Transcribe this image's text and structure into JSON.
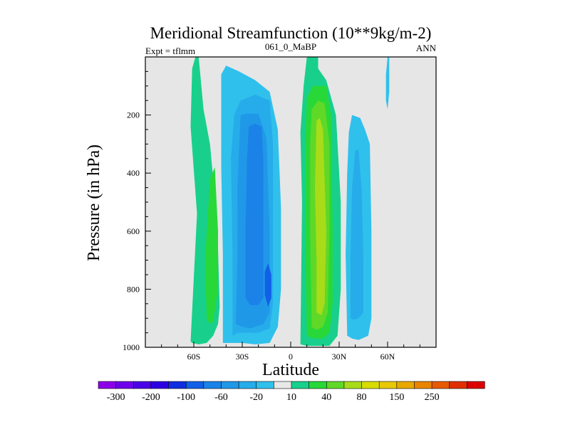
{
  "chart_data": {
    "type": "contour",
    "title": "Meridional Streamfunction (10**9kg/m-2)",
    "left_label": "Expt = tflmm",
    "center_label": "061_0_MaBP",
    "right_label": "ANN",
    "xlabel": "Latitude",
    "ylabel": "Pressure (in hPa)",
    "xlim": [
      -90,
      90
    ],
    "ylim": [
      1000,
      0
    ],
    "x_ticks": [
      {
        "value": -60,
        "label": "60S"
      },
      {
        "value": -30,
        "label": "30S"
      },
      {
        "value": 0,
        "label": "0"
      },
      {
        "value": 30,
        "label": "30N"
      },
      {
        "value": 60,
        "label": "60N"
      }
    ],
    "y_ticks": [
      {
        "value": 200,
        "label": "200"
      },
      {
        "value": 400,
        "label": "400"
      },
      {
        "value": 600,
        "label": "600"
      },
      {
        "value": 800,
        "label": "800"
      },
      {
        "value": 1000,
        "label": "1000"
      }
    ],
    "background_color": "#e6e6e6",
    "colorbar": {
      "colors": [
        "#8c00e8",
        "#6f00eb",
        "#4c00e8",
        "#2c00e2",
        "#0f2ee0",
        "#1060e8",
        "#1b82e8",
        "#2098e8",
        "#26acea",
        "#30c0ec",
        "#e8e8e8",
        "#18d08c",
        "#28d838",
        "#60d828",
        "#a8dc18",
        "#d8dc00",
        "#e8c800",
        "#e8a800",
        "#e88400",
        "#e85a00",
        "#e03000",
        "#dc0000"
      ],
      "labels": [
        "-300",
        "-200",
        "-100",
        "-60",
        "-20",
        "10",
        "40",
        "80",
        "150",
        "250"
      ]
    },
    "contour_regions": [
      {
        "level": 20,
        "color": "#18d08c",
        "points": [
          [
            -62,
            980
          ],
          [
            -58,
            540
          ],
          [
            -62,
            240
          ],
          [
            -61,
            40
          ],
          [
            -59,
            0
          ],
          [
            -57,
            0
          ],
          [
            -56,
            60
          ],
          [
            -54,
            180
          ],
          [
            -50,
            300
          ],
          [
            -47,
            480
          ],
          [
            -45,
            660
          ],
          [
            -44,
            860
          ],
          [
            -45,
            920
          ],
          [
            -48,
            960
          ],
          [
            -52,
            985
          ],
          [
            -57,
            990
          ],
          [
            -61,
            985
          ]
        ]
      },
      {
        "level": 40,
        "color": "#28d838",
        "points": [
          [
            -52,
            900
          ],
          [
            -53,
            700
          ],
          [
            -50,
            420
          ],
          [
            -47,
            380
          ],
          [
            -45,
            600
          ],
          [
            -45,
            800
          ],
          [
            -48,
            910
          ],
          [
            -50,
            920
          ]
        ]
      },
      {
        "level": -20,
        "color": "#30c0ec",
        "points": [
          [
            -42,
            985
          ],
          [
            -42,
            680
          ],
          [
            -43,
            380
          ],
          [
            -43,
            60
          ],
          [
            -40,
            30
          ],
          [
            -32,
            50
          ],
          [
            -22,
            80
          ],
          [
            -13,
            120
          ],
          [
            -8,
            250
          ],
          [
            -6,
            520
          ],
          [
            -6,
            800
          ],
          [
            -8,
            930
          ],
          [
            -13,
            985
          ],
          [
            -22,
            990
          ],
          [
            -30,
            985
          ],
          [
            -38,
            985
          ]
        ]
      },
      {
        "level": -40,
        "color": "#26acea",
        "points": [
          [
            -36,
            960
          ],
          [
            -36,
            700
          ],
          [
            -37,
            350
          ],
          [
            -35,
            200
          ],
          [
            -31,
            150
          ],
          [
            -22,
            130
          ],
          [
            -13,
            150
          ],
          [
            -11,
            300
          ],
          [
            -11,
            650
          ],
          [
            -11,
            850
          ],
          [
            -13,
            935
          ],
          [
            -20,
            950
          ],
          [
            -28,
            950
          ],
          [
            -33,
            950
          ]
        ]
      },
      {
        "level": -60,
        "color": "#2098e8",
        "points": [
          [
            -34,
            920
          ],
          [
            -33,
            700
          ],
          [
            -33,
            450
          ],
          [
            -31,
            200
          ],
          [
            -27,
            195
          ],
          [
            -20,
            195
          ],
          [
            -15,
            280
          ],
          [
            -13,
            600
          ],
          [
            -13,
            880
          ],
          [
            -17,
            920
          ],
          [
            -25,
            935
          ],
          [
            -30,
            930
          ]
        ]
      },
      {
        "level": -100,
        "color": "#1b82e8",
        "points": [
          [
            -28,
            830
          ],
          [
            -28,
            600
          ],
          [
            -27,
            350
          ],
          [
            -26,
            240
          ],
          [
            -22,
            230
          ],
          [
            -18,
            240
          ],
          [
            -17,
            350
          ],
          [
            -17,
            600
          ],
          [
            -17,
            830
          ],
          [
            -20,
            855
          ],
          [
            -25,
            855
          ]
        ]
      },
      {
        "level": -150,
        "color": "#1060e8",
        "points": [
          [
            -16,
            820
          ],
          [
            -16,
            740
          ],
          [
            -14,
            710
          ],
          [
            -12,
            750
          ],
          [
            -12,
            830
          ],
          [
            -14,
            860
          ]
        ]
      },
      {
        "level": 20,
        "color": "#18d08c",
        "points": [
          [
            6,
            990
          ],
          [
            7,
            500
          ],
          [
            6,
            260
          ],
          [
            8,
            100
          ],
          [
            10,
            0
          ],
          [
            17,
            0
          ],
          [
            17,
            40
          ],
          [
            22,
            80
          ],
          [
            28,
            200
          ],
          [
            31,
            500
          ],
          [
            31,
            800
          ],
          [
            29,
            960
          ],
          [
            24,
            995
          ],
          [
            17,
            995
          ],
          [
            10,
            995
          ]
        ]
      },
      {
        "level": 40,
        "color": "#28d838",
        "points": [
          [
            10,
            960
          ],
          [
            9,
            600
          ],
          [
            9,
            300
          ],
          [
            10,
            140
          ],
          [
            14,
            100
          ],
          [
            22,
            100
          ],
          [
            25,
            200
          ],
          [
            26,
            600
          ],
          [
            26,
            850
          ],
          [
            24,
            950
          ],
          [
            20,
            970
          ],
          [
            14,
            970
          ]
        ]
      },
      {
        "level": 80,
        "color": "#60d828",
        "points": [
          [
            13,
            930
          ],
          [
            12,
            600
          ],
          [
            12,
            300
          ],
          [
            13,
            180
          ],
          [
            17,
            150
          ],
          [
            21,
            160
          ],
          [
            24,
            300
          ],
          [
            24,
            600
          ],
          [
            23,
            880
          ],
          [
            20,
            930
          ],
          [
            16,
            940
          ]
        ]
      },
      {
        "level": 150,
        "color": "#a8dc18",
        "points": [
          [
            16,
            880
          ],
          [
            16,
            700
          ],
          [
            15,
            450
          ],
          [
            16,
            220
          ],
          [
            18,
            210
          ],
          [
            20,
            250
          ],
          [
            22,
            600
          ],
          [
            21,
            850
          ],
          [
            19,
            890
          ]
        ]
      },
      {
        "level": -20,
        "color": "#30c0ec",
        "points": [
          [
            35,
            960
          ],
          [
            34,
            680
          ],
          [
            35,
            400
          ],
          [
            36,
            260
          ],
          [
            38,
            200
          ],
          [
            43,
            210
          ],
          [
            46,
            250
          ],
          [
            49,
            300
          ],
          [
            50,
            600
          ],
          [
            50,
            900
          ],
          [
            48,
            960
          ],
          [
            42,
            975
          ],
          [
            38,
            970
          ]
        ]
      },
      {
        "level": -40,
        "color": "#26acea",
        "points": [
          [
            37,
            900
          ],
          [
            37,
            700
          ],
          [
            38,
            450
          ],
          [
            40,
            320
          ],
          [
            42,
            320
          ],
          [
            44,
            460
          ],
          [
            45,
            700
          ],
          [
            45,
            880
          ],
          [
            42,
            900
          ],
          [
            39,
            905
          ]
        ]
      },
      {
        "level": -20,
        "color": "#30c0ec",
        "points": [
          [
            60,
            0
          ],
          [
            59,
            60
          ],
          [
            59,
            150
          ],
          [
            60,
            180
          ],
          [
            61,
            120
          ],
          [
            61,
            40
          ],
          [
            61,
            0
          ]
        ]
      }
    ]
  }
}
